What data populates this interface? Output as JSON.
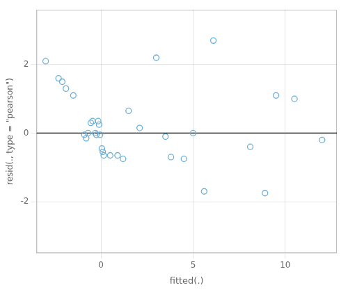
{
  "chart_data": {
    "type": "scatter",
    "x_label": "fitted(.)",
    "y_label": "resid(., type = \"pearson\")",
    "x": [
      -3.0,
      -2.3,
      -2.1,
      -1.9,
      -1.5,
      -0.9,
      -0.8,
      -0.7,
      -0.55,
      -0.45,
      -0.3,
      -0.25,
      -0.15,
      -0.1,
      -0.05,
      0.05,
      0.1,
      0.15,
      0.5,
      0.9,
      1.2,
      1.5,
      2.1,
      3.0,
      3.5,
      3.8,
      4.5,
      5.0,
      5.6,
      6.1,
      8.1,
      8.9,
      9.5,
      10.5,
      12.0
    ],
    "values": [
      2.1,
      1.6,
      1.5,
      1.3,
      1.1,
      -0.05,
      -0.15,
      0.0,
      0.3,
      0.35,
      0.0,
      -0.05,
      0.35,
      0.25,
      -0.05,
      -0.45,
      -0.55,
      -0.65,
      -0.65,
      -0.65,
      -0.75,
      0.65,
      0.15,
      2.2,
      -0.1,
      -0.7,
      -0.75,
      0.0,
      -1.7,
      2.7,
      -0.4,
      -1.75,
      1.1,
      1.0,
      -0.2
    ],
    "color": "#6baed6",
    "marker": "open-circle",
    "hline": {
      "y": 0,
      "color": "black"
    },
    "xlim": [
      -3.5,
      12.8
    ],
    "ylim": [
      -3.5,
      3.6
    ],
    "xticks": [
      0,
      5,
      10
    ],
    "yticks": [
      -2,
      0,
      2
    ],
    "grid": true
  }
}
